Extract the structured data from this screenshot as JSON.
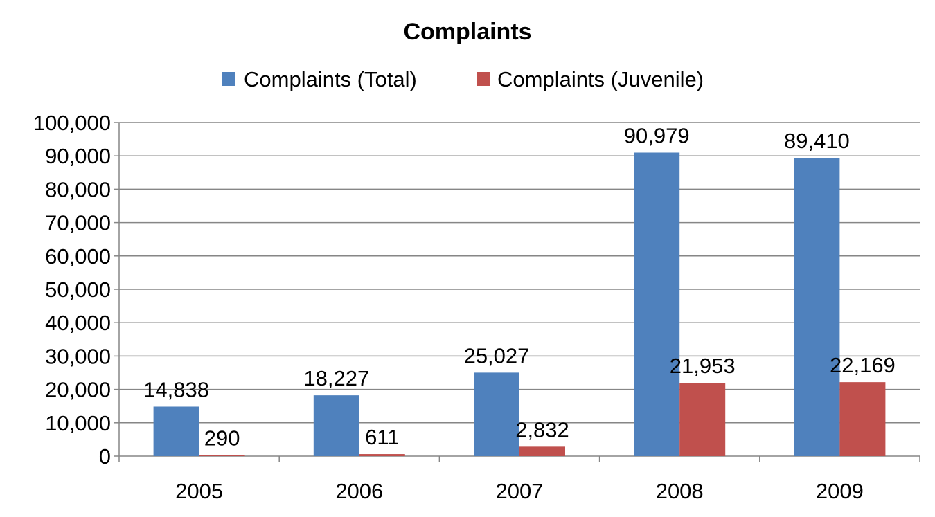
{
  "chart_data": {
    "type": "bar",
    "title": "Complaints",
    "xlabel": "",
    "ylabel": "",
    "categories": [
      "2005",
      "2006",
      "2007",
      "2008",
      "2009"
    ],
    "series": [
      {
        "name": "Complaints (Total)",
        "color": "#4F81BD",
        "values": [
          14838,
          18227,
          25027,
          90979,
          89410
        ],
        "labels": [
          "14,838",
          "18,227",
          "25,027",
          "90,979",
          "89,410"
        ]
      },
      {
        "name": "Complaints (Juvenile)",
        "color": "#C0504D",
        "values": [
          290,
          611,
          2832,
          21953,
          22169
        ],
        "labels": [
          "290",
          "611",
          "2,832",
          "21,953",
          "22,169"
        ]
      }
    ],
    "ylim": [
      0,
      100000
    ],
    "yticks": [
      0,
      10000,
      20000,
      30000,
      40000,
      50000,
      60000,
      70000,
      80000,
      90000,
      100000
    ],
    "ytick_labels": [
      "0",
      "10,000",
      "20,000",
      "30,000",
      "40,000",
      "50,000",
      "60,000",
      "70,000",
      "80,000",
      "90,000",
      "100,000"
    ],
    "grid": true,
    "legend_position": "top"
  }
}
